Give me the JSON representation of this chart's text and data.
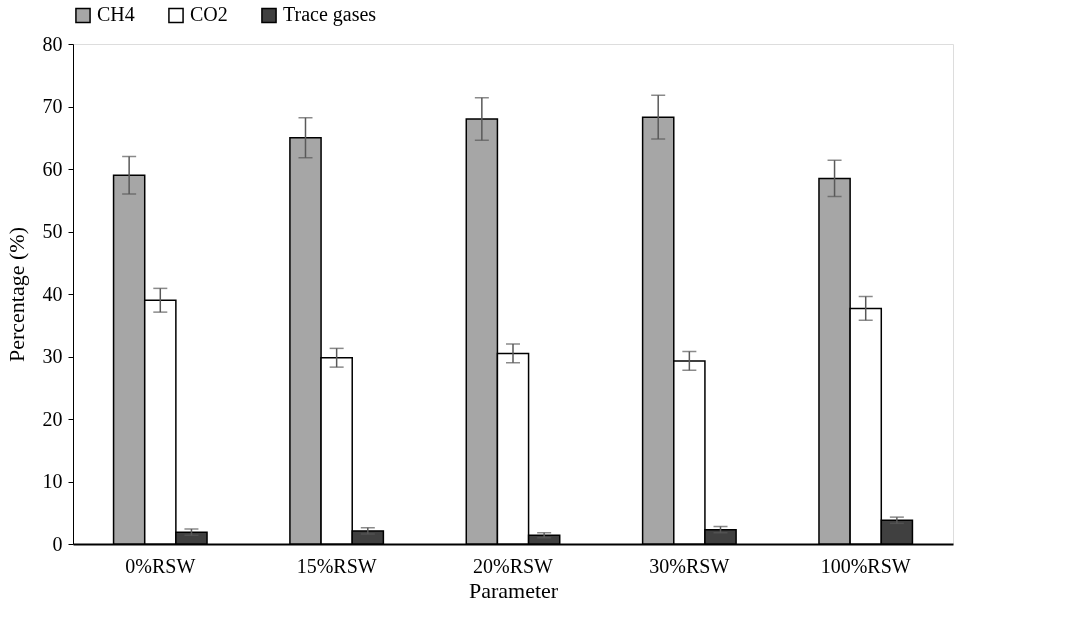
{
  "chart_data": {
    "type": "bar",
    "xlabel": "Parameter",
    "ylabel": "Percentage (%)",
    "categories": [
      "0%RSW",
      "15%RSW",
      "20%RSW",
      "30%RSW",
      "100%RSW"
    ],
    "series": [
      {
        "name": "CH4",
        "color": "#a6a6a6",
        "values": [
          59,
          65,
          68,
          68.3,
          58.5
        ],
        "errors": [
          3,
          3.2,
          3.4,
          3.5,
          2.9
        ]
      },
      {
        "name": "CO2",
        "color": "#ffffff",
        "values": [
          39,
          29.8,
          30.5,
          29.3,
          37.7
        ],
        "errors": [
          1.9,
          1.5,
          1.5,
          1.5,
          1.9
        ]
      },
      {
        "name": "Trace gases",
        "color": "#404040",
        "values": [
          1.9,
          2.1,
          1.4,
          2.3,
          3.8
        ],
        "errors": [
          0.5,
          0.5,
          0.4,
          0.5,
          0.5
        ]
      }
    ],
    "ylim": [
      0,
      80
    ],
    "yticks": [
      0,
      10,
      20,
      30,
      40,
      50,
      60,
      70,
      80
    ],
    "grid": false,
    "legend": "top"
  }
}
